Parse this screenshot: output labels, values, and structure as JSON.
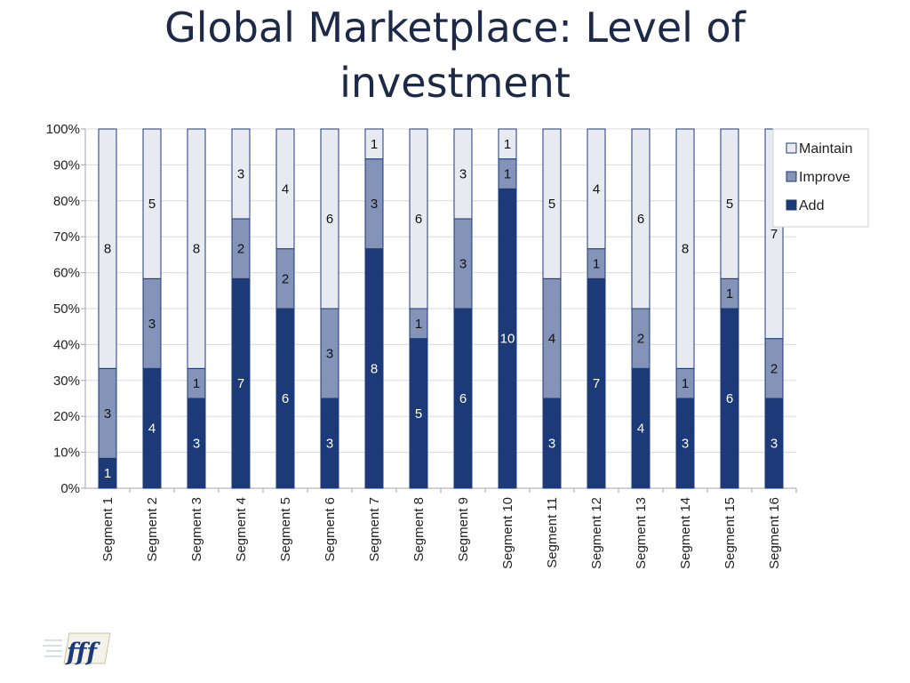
{
  "slide": {
    "title_line1": "Global Marketplace: Level of",
    "title_line2": "investment",
    "logo_text": "fff"
  },
  "colors": {
    "add": "#1c3a78",
    "improve": "#8493b8",
    "maintain": "#e7eaf0",
    "outline": "#1c3a78",
    "title": "#1c2a48"
  },
  "chart_data": {
    "type": "bar",
    "stacked": "percent",
    "categories": [
      "Segment 1",
      "Segment 2",
      "Segment 3",
      "Segment 4",
      "Segment 5",
      "Segment 6",
      "Segment 7",
      "Segment 8",
      "Segment 9",
      "Segment 10",
      "Segment 11",
      "Segment 12",
      "Segment 13",
      "Segment 14",
      "Segment 15",
      "Segment 16"
    ],
    "series": [
      {
        "name": "Add",
        "values": [
          1,
          4,
          3,
          7,
          6,
          3,
          8,
          5,
          6,
          10,
          3,
          7,
          4,
          3,
          6,
          3
        ]
      },
      {
        "name": "Improve",
        "values": [
          3,
          3,
          1,
          2,
          2,
          3,
          3,
          1,
          3,
          1,
          4,
          1,
          2,
          1,
          1,
          2
        ]
      },
      {
        "name": "Maintain",
        "values": [
          8,
          5,
          8,
          3,
          4,
          6,
          1,
          6,
          3,
          1,
          5,
          4,
          6,
          8,
          5,
          7
        ]
      }
    ],
    "yticks": [
      "0%",
      "10%",
      "20%",
      "30%",
      "40%",
      "50%",
      "60%",
      "70%",
      "80%",
      "90%",
      "100%"
    ],
    "ylim": [
      0,
      100
    ],
    "grid": true,
    "legend": {
      "position": "right",
      "order": [
        "Maintain",
        "Improve",
        "Add"
      ]
    }
  }
}
